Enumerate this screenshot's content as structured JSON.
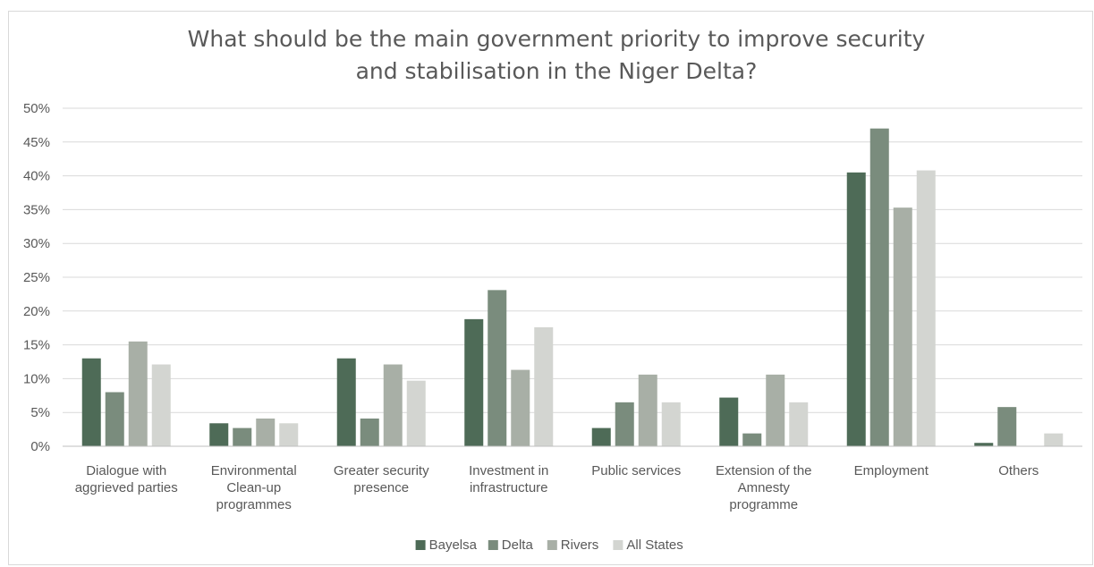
{
  "chart_data": {
    "type": "bar",
    "title_lines": [
      "What should be the main government priority to improve security",
      "and stabilisation in the Niger Delta?"
    ],
    "categories": [
      [
        "Dialogue with",
        "aggrieved parties"
      ],
      [
        "Environmental",
        "Clean-up",
        "programmes"
      ],
      [
        "Greater security",
        "presence"
      ],
      [
        "Investment in",
        "infrastructure"
      ],
      [
        "Public services"
      ],
      [
        "Extension of the",
        "Amnesty",
        "programme"
      ],
      [
        "Employment"
      ],
      [
        "Others"
      ]
    ],
    "series": [
      {
        "name": "Bayelsa",
        "color": "#4e6b57",
        "values": [
          13.0,
          3.4,
          13.0,
          18.8,
          2.7,
          7.2,
          40.5,
          0.5
        ]
      },
      {
        "name": "Delta",
        "color": "#7a8c7d",
        "values": [
          8.0,
          2.7,
          4.1,
          23.1,
          6.5,
          1.9,
          47.0,
          5.8
        ]
      },
      {
        "name": "Rivers",
        "color": "#a8afa6",
        "values": [
          15.5,
          4.1,
          12.1,
          11.3,
          10.6,
          10.6,
          35.3,
          0.0
        ]
      },
      {
        "name": "All States",
        "color": "#d3d5d1",
        "values": [
          12.1,
          3.4,
          9.7,
          17.6,
          6.5,
          6.5,
          40.8,
          1.9
        ]
      }
    ],
    "y_ticks": [
      "0%",
      "5%",
      "10%",
      "15%",
      "20%",
      "25%",
      "30%",
      "35%",
      "40%",
      "45%",
      "50%"
    ],
    "ylim": [
      0,
      50
    ],
    "legend_position": "bottom",
    "grid": true
  }
}
